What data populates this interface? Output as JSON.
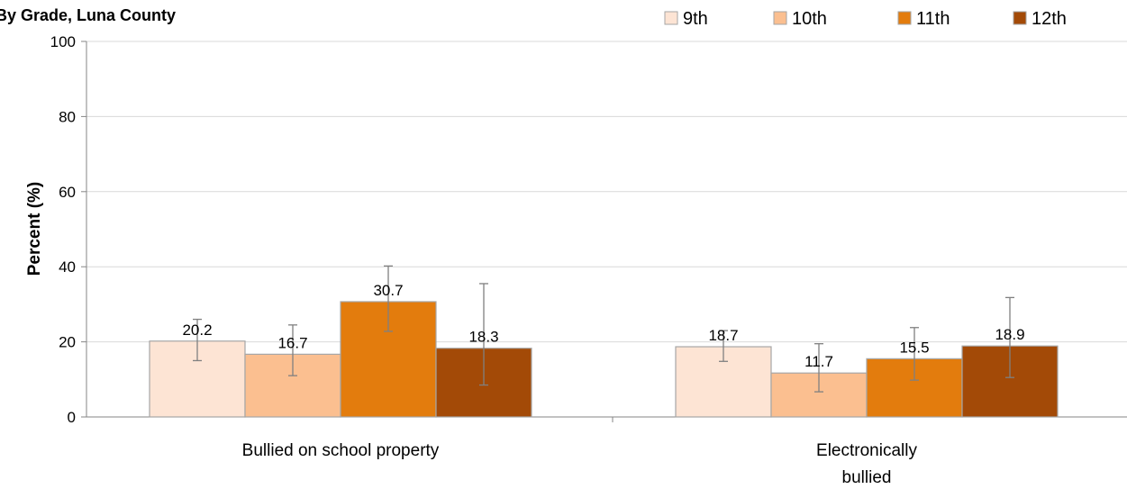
{
  "chart_data": {
    "type": "bar",
    "title": "By Grade, Luna County",
    "ylabel": "Percent (%)",
    "xlabel": "",
    "ylim": [
      0,
      100
    ],
    "yticks": [
      0,
      20,
      40,
      60,
      80,
      100
    ],
    "grid": true,
    "legend_position": "top-right",
    "categories": [
      [
        "Bullied on school property"
      ],
      [
        "Electronically",
        "bullied"
      ]
    ],
    "series": [
      {
        "name": "9th",
        "color": "#FDE4D4",
        "values": [
          20.2,
          18.7
        ],
        "error_low": [
          15.0,
          14.8
        ],
        "error_high": [
          26.0,
          23.0
        ]
      },
      {
        "name": "10th",
        "color": "#FBBF90",
        "values": [
          16.7,
          11.7
        ],
        "error_low": [
          11.0,
          6.7
        ],
        "error_high": [
          24.5,
          19.5
        ]
      },
      {
        "name": "11th",
        "color": "#E37C0D",
        "values": [
          30.7,
          15.5
        ],
        "error_low": [
          22.8,
          9.8
        ],
        "error_high": [
          40.2,
          23.8
        ]
      },
      {
        "name": "12th",
        "color": "#A34A07",
        "values": [
          18.3,
          18.9
        ],
        "error_low": [
          8.5,
          10.5
        ],
        "error_high": [
          35.5,
          31.8
        ]
      }
    ],
    "colors": {
      "grid": "#d9d9d9",
      "axis": "#868686",
      "bar_border": "#a6a6a6",
      "error_bar": "#808080"
    }
  }
}
